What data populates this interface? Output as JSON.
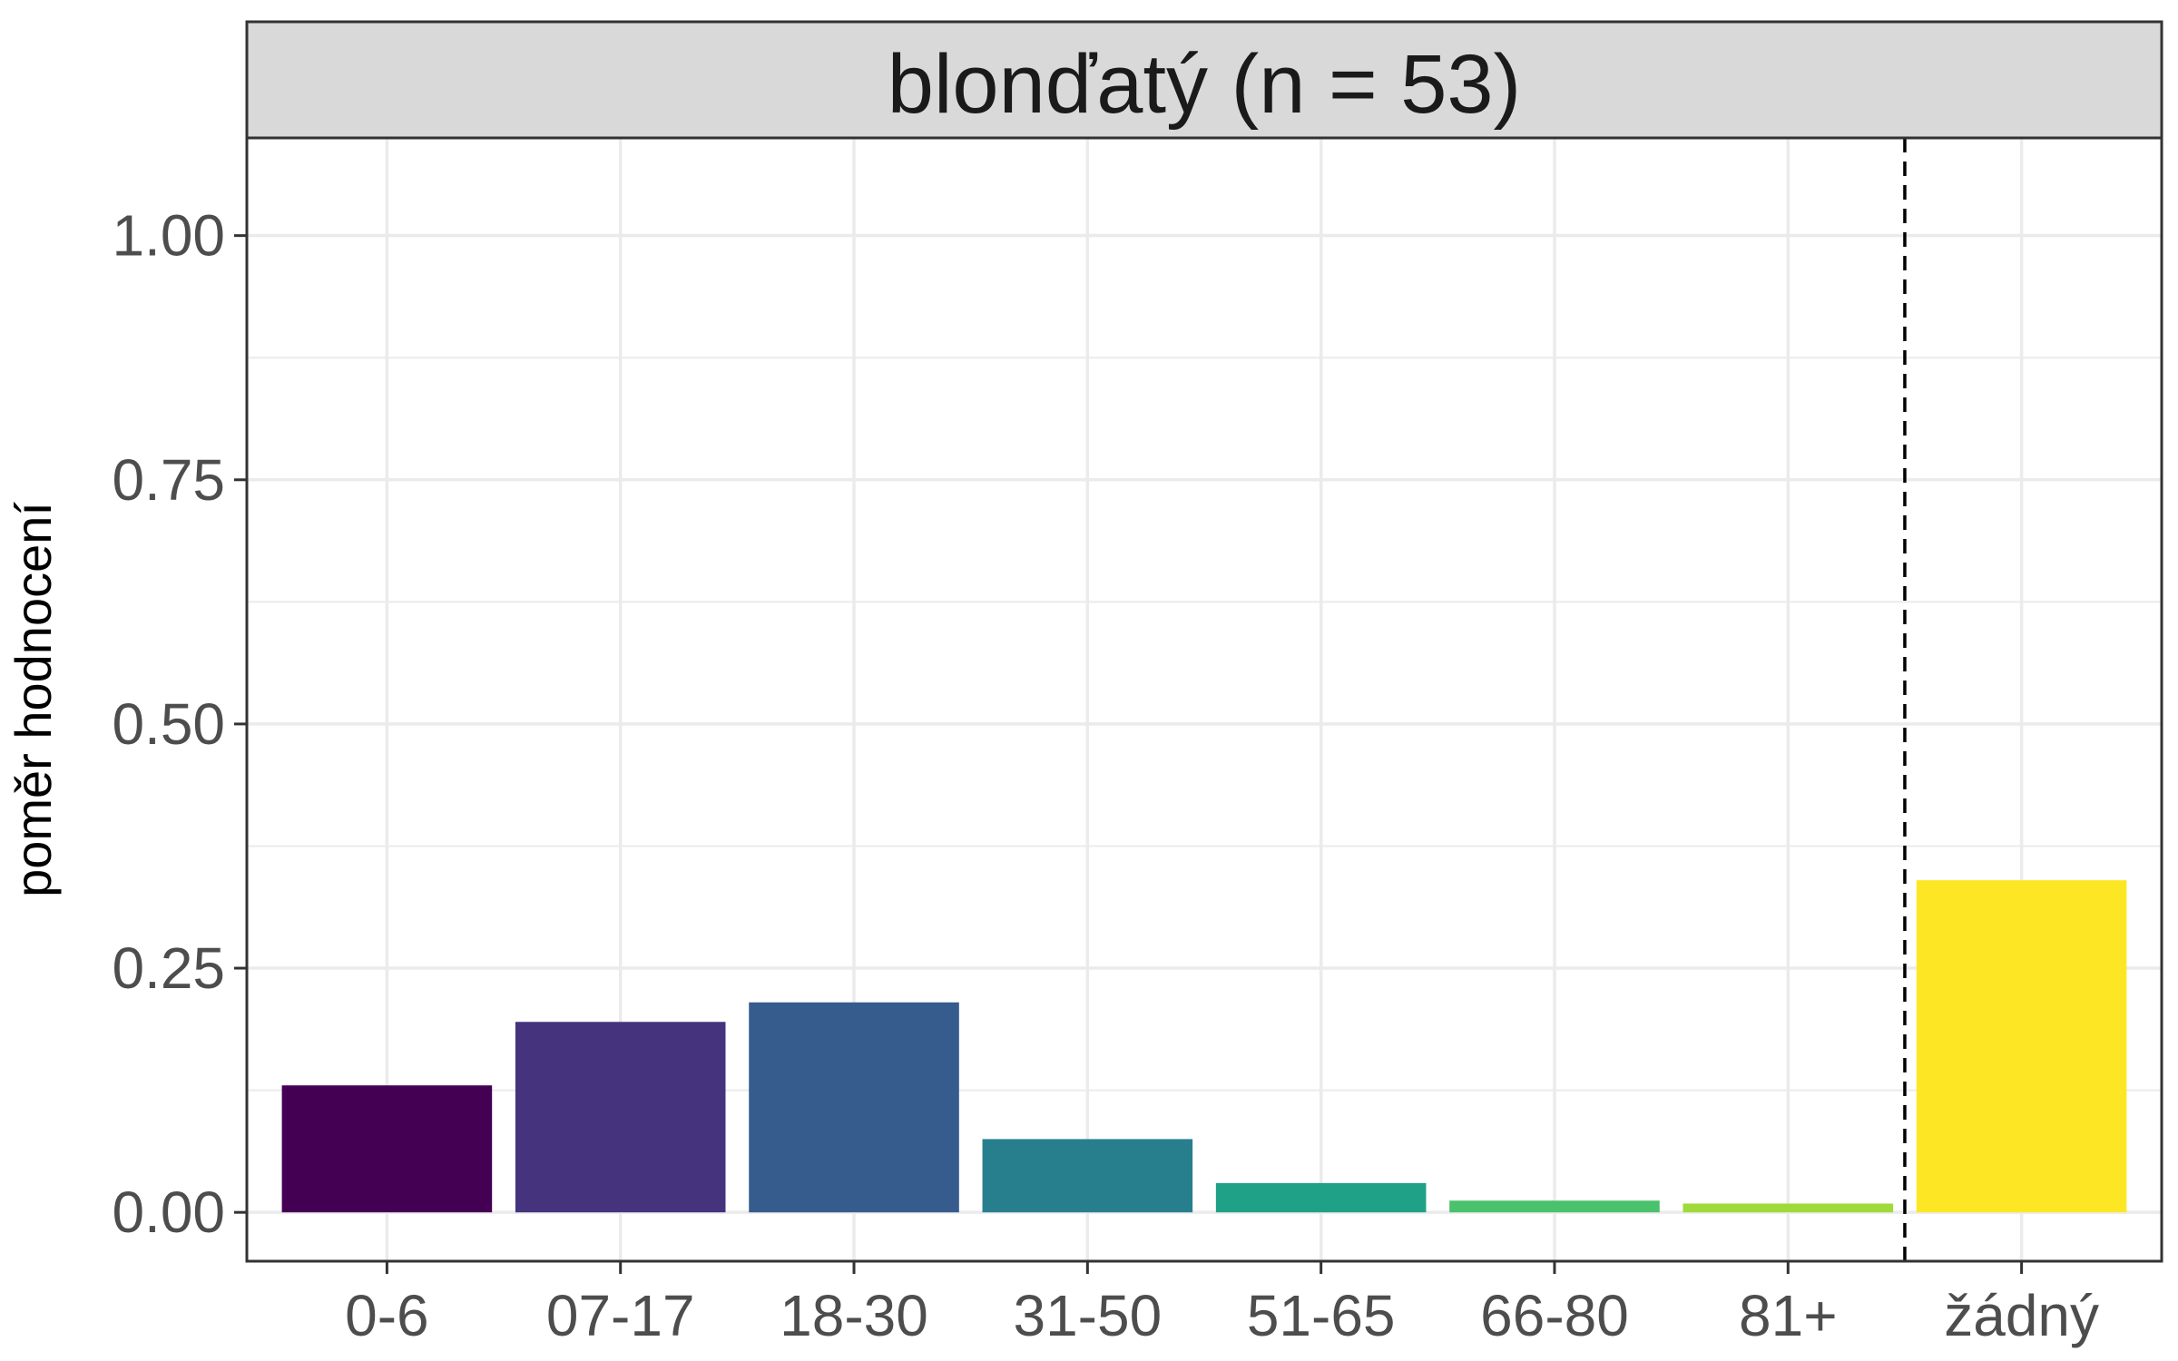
{
  "chart_data": {
    "type": "bar",
    "facet_title": "blonďatý (n = 53)",
    "xlabel": "",
    "ylabel": "poměr hodnocení",
    "categories": [
      "0-6",
      "07-17",
      "18-30",
      "31-50",
      "51-65",
      "66-80",
      "81+",
      "žádný"
    ],
    "values": [
      0.13,
      0.195,
      0.215,
      0.075,
      0.03,
      0.012,
      0.009,
      0.34
    ],
    "colors": [
      "#440154",
      "#46337E",
      "#365C8D",
      "#277F8E",
      "#1FA187",
      "#4AC16D",
      "#9FDA3A",
      "#FDE725"
    ],
    "ylim": [
      -0.05,
      1.1
    ],
    "yticks": [
      0.0,
      0.25,
      0.5,
      0.75,
      1.0
    ],
    "ytick_labels": [
      "0.00",
      "0.25",
      "0.50",
      "0.75",
      "1.00"
    ],
    "separator_after_category": "81+",
    "grid": true,
    "legend": "none"
  }
}
